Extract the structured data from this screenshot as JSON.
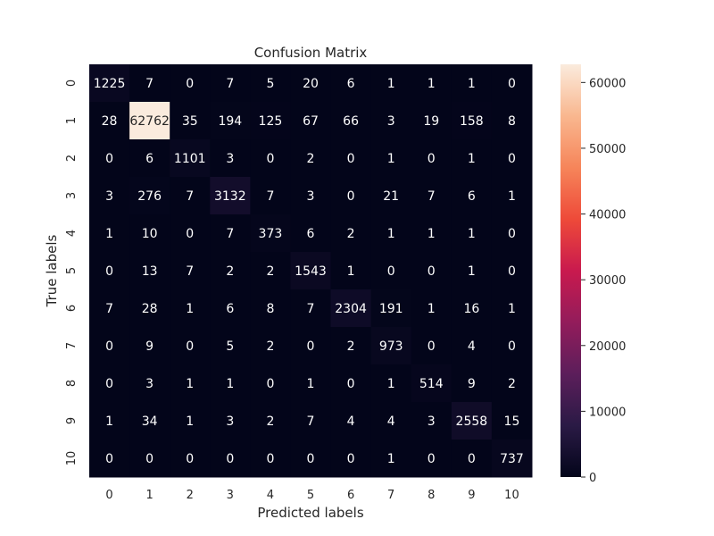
{
  "chart_data": {
    "type": "heatmap",
    "title": "Confusion Matrix",
    "xlabel": "Predicted labels",
    "ylabel": "True labels",
    "x_categories": [
      "0",
      "1",
      "2",
      "3",
      "4",
      "5",
      "6",
      "7",
      "8",
      "9",
      "10"
    ],
    "y_categories": [
      "0",
      "1",
      "2",
      "3",
      "4",
      "5",
      "6",
      "7",
      "8",
      "9",
      "10"
    ],
    "values": [
      [
        1225,
        7,
        0,
        7,
        5,
        20,
        6,
        1,
        1,
        1,
        0
      ],
      [
        28,
        62762,
        35,
        194,
        125,
        67,
        66,
        3,
        19,
        158,
        8
      ],
      [
        0,
        6,
        1101,
        3,
        0,
        2,
        0,
        1,
        0,
        1,
        0
      ],
      [
        3,
        276,
        7,
        3132,
        7,
        3,
        0,
        21,
        7,
        6,
        1
      ],
      [
        1,
        10,
        0,
        7,
        373,
        6,
        2,
        1,
        1,
        1,
        0
      ],
      [
        0,
        13,
        7,
        2,
        2,
        1543,
        1,
        0,
        0,
        1,
        0
      ],
      [
        7,
        28,
        1,
        6,
        8,
        7,
        2304,
        191,
        1,
        16,
        1
      ],
      [
        0,
        9,
        0,
        5,
        2,
        0,
        2,
        973,
        0,
        4,
        0
      ],
      [
        0,
        3,
        1,
        1,
        0,
        1,
        0,
        1,
        514,
        9,
        2
      ],
      [
        1,
        34,
        1,
        3,
        2,
        7,
        4,
        4,
        3,
        2558,
        15
      ],
      [
        0,
        0,
        0,
        0,
        0,
        0,
        0,
        1,
        0,
        0,
        737
      ]
    ],
    "colorbar": {
      "range": [
        0,
        62762
      ],
      "ticks": [
        0,
        10000,
        20000,
        30000,
        40000,
        50000,
        60000
      ],
      "colormap": "rocket",
      "colors": [
        "#03051a",
        "#2a1a45",
        "#5c1e5b",
        "#931c5b",
        "#c91a4e",
        "#ee4a39",
        "#f6855a",
        "#f9b78f",
        "#faebdd"
      ]
    },
    "annotations": true,
    "grid": false
  }
}
